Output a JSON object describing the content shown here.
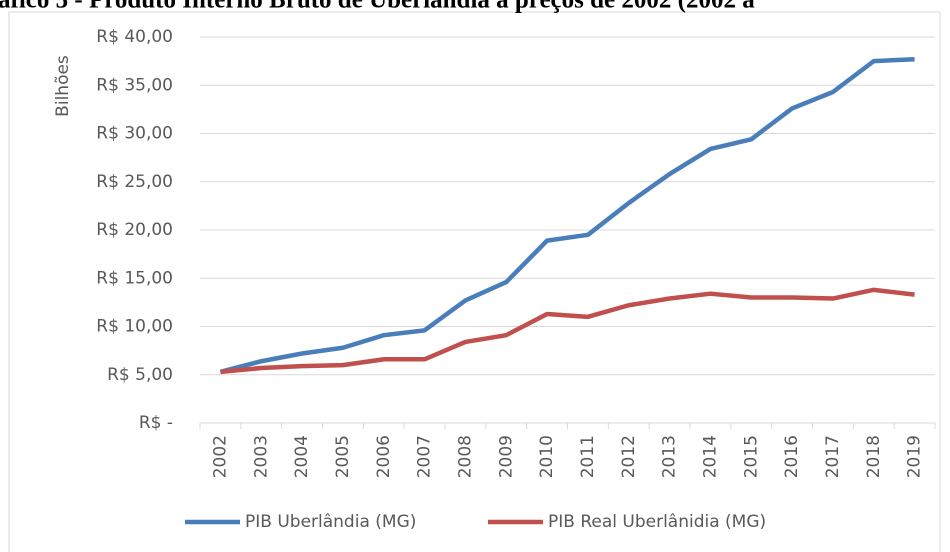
{
  "chart_data": {
    "type": "line",
    "title": "áfico 5 - Produto Interno Bruto de Uberlândia a preços de 2002 (2002 a",
    "y_label": "Bilhões",
    "categories": [
      "2002",
      "2003",
      "2004",
      "2005",
      "2006",
      "2007",
      "2008",
      "2009",
      "2010",
      "2011",
      "2012",
      "2013",
      "2014",
      "2015",
      "2016",
      "2017",
      "2018",
      "2019"
    ],
    "series": [
      {
        "name": "PIB Uberlândia (MG)",
        "color": "#4a7ebb",
        "values": [
          5.3,
          6.4,
          7.2,
          7.8,
          9.1,
          9.6,
          12.7,
          14.6,
          18.9,
          19.5,
          22.8,
          25.8,
          28.4,
          29.4,
          32.6,
          34.3,
          37.5,
          37.7
        ]
      },
      {
        "name": "PIB Real Uberlânidia (MG)",
        "color": "#c0504d",
        "values": [
          5.3,
          5.7,
          5.9,
          6.0,
          6.6,
          6.6,
          8.4,
          9.1,
          11.3,
          11.0,
          12.2,
          12.9,
          13.4,
          13.0,
          13.0,
          12.9,
          13.8,
          13.3
        ]
      }
    ],
    "ylim": [
      0,
      40
    ],
    "yticks": [
      {
        "value": 0,
        "label": "R$ -"
      },
      {
        "value": 5,
        "label": "R$ 5,00"
      },
      {
        "value": 10,
        "label": "R$ 10,00"
      },
      {
        "value": 15,
        "label": "R$ 15,00"
      },
      {
        "value": 20,
        "label": "R$ 20,00"
      },
      {
        "value": 25,
        "label": "R$ 25,00"
      },
      {
        "value": 30,
        "label": "R$ 30,00"
      },
      {
        "value": 35,
        "label": "R$ 35,00"
      },
      {
        "value": 40,
        "label": "R$ 40,00"
      }
    ],
    "grid": true,
    "legend": "bottom"
  }
}
